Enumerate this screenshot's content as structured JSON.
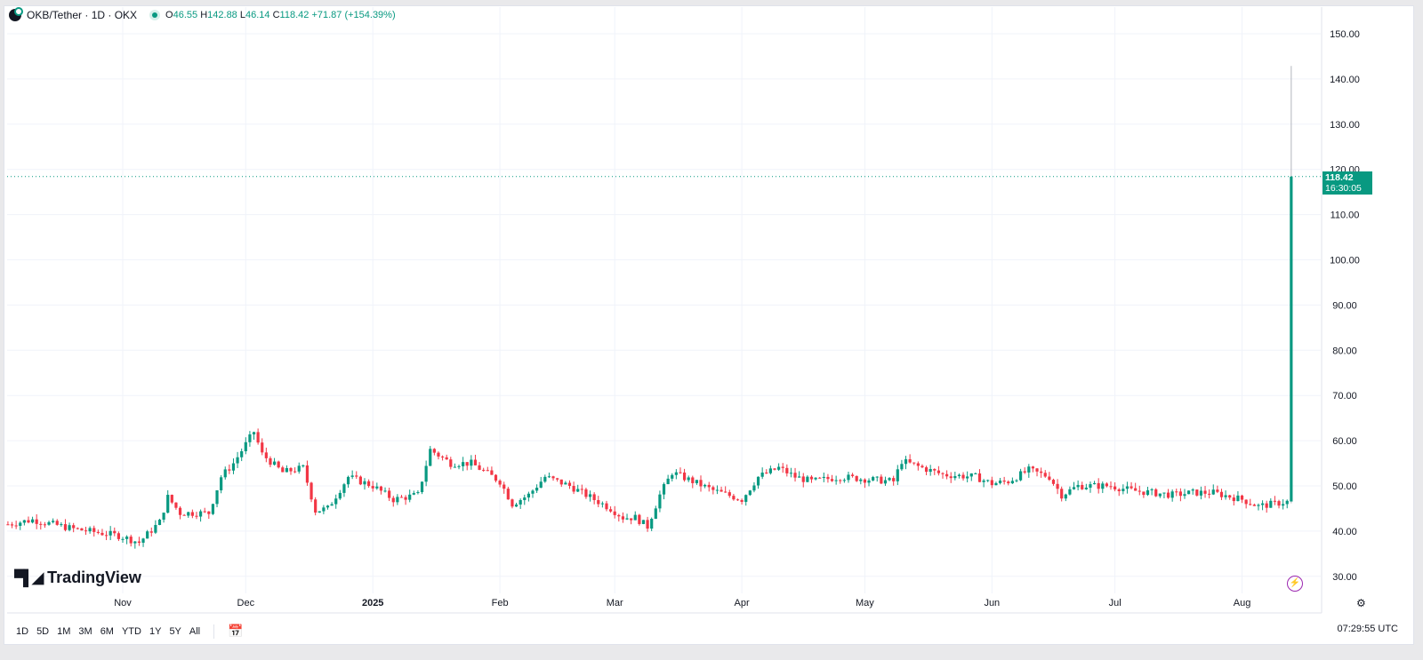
{
  "header": {
    "symbol": "OKB/Tether · 1D · OKX",
    "open_label": "O",
    "open": "46.55",
    "high_label": "H",
    "high": "142.88",
    "low_label": "L",
    "low": "46.14",
    "close_label": "C",
    "close": "118.42",
    "change": "+71.87 (+154.39%)"
  },
  "logo": "TradingView",
  "price_tag": {
    "price": "118.42",
    "countdown": "16:30:05"
  },
  "toolbar": {
    "ranges": [
      "1D",
      "5D",
      "1M",
      "3M",
      "6M",
      "YTD",
      "1Y",
      "5Y",
      "All"
    ]
  },
  "clock": "07:29:55 UTC",
  "colors": {
    "up": "#089981",
    "down": "#f23645",
    "grid": "#f0f3fa"
  },
  "chart_data": {
    "type": "candlestick",
    "ylim": [
      28,
      152
    ],
    "y_ticks": [
      "150.00",
      "140.00",
      "130.00",
      "120.00",
      "110.00",
      "100.00",
      "90.00",
      "80.00",
      "70.00",
      "60.00",
      "50.00",
      "40.00",
      "30.00"
    ],
    "x_ticks": [
      {
        "label": "Nov",
        "date": "2024-11-01"
      },
      {
        "label": "Dec",
        "date": "2024-12-01"
      },
      {
        "label": "2025",
        "date": "2025-01-01"
      },
      {
        "label": "Feb",
        "date": "2025-02-01"
      },
      {
        "label": "Mar",
        "date": "2025-03-01"
      },
      {
        "label": "Apr",
        "date": "2025-04-01"
      },
      {
        "label": "May",
        "date": "2025-05-01"
      },
      {
        "label": "Jun",
        "date": "2025-06-01"
      },
      {
        "label": "Jul",
        "date": "2025-07-01"
      },
      {
        "label": "Aug",
        "date": "2025-08-01"
      }
    ],
    "grid": true,
    "close_series": [
      [
        "2024-10-04",
        41.5
      ],
      [
        "2024-10-10",
        42.5
      ],
      [
        "2024-10-20",
        40.5
      ],
      [
        "2024-10-31",
        39
      ],
      [
        "2024-11-05",
        37.5
      ],
      [
        "2024-11-10",
        42
      ],
      [
        "2024-11-12",
        47.5
      ],
      [
        "2024-11-15",
        44
      ],
      [
        "2024-11-22",
        44
      ],
      [
        "2024-11-25",
        52
      ],
      [
        "2024-11-28",
        55
      ],
      [
        "2024-12-03",
        62
      ],
      [
        "2024-12-05",
        57
      ],
      [
        "2024-12-10",
        53
      ],
      [
        "2024-12-15",
        54
      ],
      [
        "2024-12-18",
        44.5
      ],
      [
        "2024-12-21",
        45
      ],
      [
        "2024-12-26",
        52
      ],
      [
        "2025-01-01",
        50
      ],
      [
        "2025-01-06",
        47
      ],
      [
        "2025-01-12",
        48
      ],
      [
        "2025-01-15",
        58
      ],
      [
        "2025-01-20",
        55
      ],
      [
        "2025-01-25",
        55
      ],
      [
        "2025-02-01",
        51
      ],
      [
        "2025-02-04",
        46
      ],
      [
        "2025-02-08",
        48
      ],
      [
        "2025-02-12",
        52
      ],
      [
        "2025-02-18",
        50
      ],
      [
        "2025-02-24",
        47
      ],
      [
        "2025-02-28",
        45
      ],
      [
        "2025-03-03",
        43
      ],
      [
        "2025-03-06",
        43
      ],
      [
        "2025-03-09",
        41
      ],
      [
        "2025-03-12",
        48
      ],
      [
        "2025-03-15",
        53
      ],
      [
        "2025-03-20",
        51
      ],
      [
        "2025-03-25",
        49
      ],
      [
        "2025-04-01",
        47
      ],
      [
        "2025-04-05",
        52
      ],
      [
        "2025-04-10",
        54
      ],
      [
        "2025-04-14",
        52
      ],
      [
        "2025-04-18",
        51
      ],
      [
        "2025-04-25",
        52
      ],
      [
        "2025-05-01",
        51.5
      ],
      [
        "2025-05-08",
        51
      ],
      [
        "2025-05-10",
        55.5
      ],
      [
        "2025-05-15",
        54
      ],
      [
        "2025-05-20",
        52.5
      ],
      [
        "2025-05-28",
        52
      ],
      [
        "2025-06-01",
        50.5
      ],
      [
        "2025-06-05",
        51
      ],
      [
        "2025-06-10",
        53.5
      ],
      [
        "2025-06-15",
        52
      ],
      [
        "2025-06-18",
        48
      ],
      [
        "2025-06-22",
        50
      ],
      [
        "2025-06-30",
        50
      ],
      [
        "2025-07-05",
        49
      ],
      [
        "2025-07-10",
        48.5
      ],
      [
        "2025-07-15",
        48
      ],
      [
        "2025-07-20",
        48.5
      ],
      [
        "2025-07-25",
        48.5
      ],
      [
        "2025-08-01",
        47
      ],
      [
        "2025-08-05",
        45.5
      ],
      [
        "2025-08-12",
        46.5
      ]
    ],
    "last_candle": {
      "date": "2025-08-13",
      "open": 46.55,
      "high": 142.88,
      "low": 46.14,
      "close": 118.42
    }
  }
}
